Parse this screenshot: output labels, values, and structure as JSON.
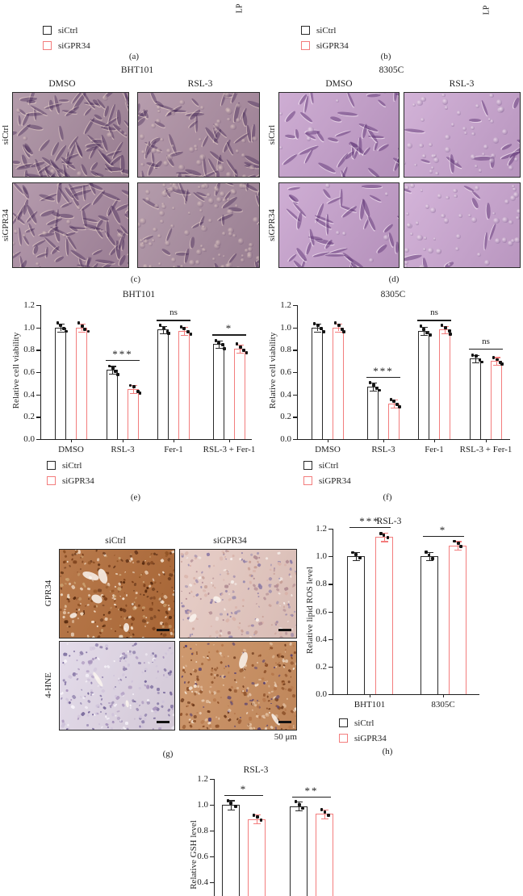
{
  "colors": {
    "text": "#1f1f1f",
    "axis": "#1f1f1f",
    "si_ctrl_outline": "#2a2a2a",
    "si_gpr34_outline": "#f37d7d",
    "data_point": "#141414"
  },
  "cropped_axis_labels": {
    "left": "LP",
    "right": "LP"
  },
  "legend_items": [
    {
      "label": "siCtrl",
      "color": "#2a2a2a"
    },
    {
      "label": "siGPR34",
      "color": "#f37d7d"
    }
  ],
  "panel_labels": {
    "a": "(a)",
    "b": "(b)",
    "c": "(c)",
    "d": "(d)",
    "e": "(e)",
    "f": "(f)",
    "g": "(g)",
    "h": "(h)"
  },
  "micrograph_panels": [
    {
      "title": "BHT101",
      "col_headers": [
        "DMSO",
        "RSL-3"
      ],
      "row_headers": [
        "siCtrl",
        "siGPR34"
      ],
      "images": [
        {
          "row": "siCtrl",
          "col": "DMSO",
          "appearance": "dense spindle-shaped adherent cells",
          "base": "#a78b9d"
        },
        {
          "row": "siCtrl",
          "col": "RSL-3",
          "appearance": "dense cells with some rounded dying cells",
          "base": "#ab8da0"
        },
        {
          "row": "siGPR34",
          "col": "DMSO",
          "appearance": "dense spindle-shaped adherent cells",
          "base": "#a98ba0"
        },
        {
          "row": "siGPR34",
          "col": "RSL-3",
          "appearance": "many rounded detached dying cells",
          "base": "#a88c9e"
        }
      ]
    },
    {
      "title": "8305C",
      "col_headers": [
        "DMSO",
        "RSL-3"
      ],
      "row_headers": [
        "siCtrl",
        "siGPR34"
      ],
      "images": [
        {
          "row": "siCtrl",
          "col": "DMSO",
          "appearance": "sparse elongated adherent cells",
          "base": "#c6a0cc"
        },
        {
          "row": "siCtrl",
          "col": "RSL-3",
          "appearance": "sparse rounded dying cells",
          "base": "#cba6d1"
        },
        {
          "row": "siGPR34",
          "col": "DMSO",
          "appearance": "sparse elongated adherent cells",
          "base": "#c7a1cd"
        },
        {
          "row": "siGPR34",
          "col": "RSL-3",
          "appearance": "mostly rounded detached dying cells",
          "base": "#cda8d3"
        }
      ]
    }
  ],
  "ihc_panel": {
    "col_headers": [
      "siCtrl",
      "siGPR34"
    ],
    "row_headers": [
      "GPR34",
      "4-HNE"
    ],
    "scale_bar_label": "50 μm",
    "images": [
      {
        "row": "GPR34",
        "col": "siCtrl",
        "staining": "strong brown staining",
        "base": "#b06b38"
      },
      {
        "row": "GPR34",
        "col": "siGPR34",
        "staining": "weak pale pink-blue staining",
        "base": "#e5c9c2"
      },
      {
        "row": "4-HNE",
        "col": "siCtrl",
        "staining": "weak pale lavender staining",
        "base": "#e0d7e7"
      },
      {
        "row": "4-HNE",
        "col": "siGPR34",
        "staining": "strong orange-brown staining",
        "base": "#c98e5f"
      }
    ]
  },
  "chart_data": [
    {
      "id": "e",
      "type": "bar",
      "title": "BHT101",
      "ylabel": "Relative cell viability",
      "ylim": [
        0,
        1.2
      ],
      "ytick_step": 0.2,
      "categories": [
        "DMSO",
        "RSL-3",
        "Fer-1",
        "RSL-3 + Fer-1"
      ],
      "series": [
        {
          "name": "siCtrl",
          "values": [
            1.0,
            0.62,
            0.98,
            0.85
          ]
        },
        {
          "name": "siGPR34",
          "values": [
            1.0,
            0.45,
            0.97,
            0.81
          ]
        }
      ],
      "significance": [
        null,
        "***",
        "ns",
        "*"
      ],
      "n_points_per_bar": 4,
      "error": 0.035
    },
    {
      "id": "f",
      "type": "bar",
      "title": "8305C",
      "ylabel": "Relative cell viability",
      "ylim": [
        0,
        1.2
      ],
      "ytick_step": 0.2,
      "categories": [
        "DMSO",
        "RSL-3",
        "Fer-1",
        "RSL-3 + Fer-1"
      ],
      "series": [
        {
          "name": "siCtrl",
          "values": [
            1.0,
            0.47,
            0.97,
            0.72
          ]
        },
        {
          "name": "siGPR34",
          "values": [
            1.0,
            0.32,
            0.98,
            0.7
          ]
        }
      ],
      "significance": [
        null,
        "***",
        "ns",
        "ns"
      ],
      "n_points_per_bar": 4,
      "error": 0.035
    },
    {
      "id": "h",
      "type": "bar",
      "title": "RSL-3",
      "ylabel": "Relative lipid ROS level",
      "ylim": [
        0,
        1.2
      ],
      "ytick_step": 0.2,
      "categories": [
        "BHT101",
        "8305C"
      ],
      "series": [
        {
          "name": "siCtrl",
          "values": [
            1.0,
            1.0
          ]
        },
        {
          "name": "siGPR34",
          "values": [
            1.14,
            1.08
          ]
        }
      ],
      "significance": [
        "***",
        "*"
      ],
      "n_points_per_bar": 3,
      "error": 0.03
    },
    {
      "id": "i",
      "type": "bar",
      "title": "RSL-3",
      "ylabel": "Relative GSH level",
      "ylim": [
        0,
        1.2
      ],
      "ytick_step": 0.2,
      "categories": [
        "",
        ""
      ],
      "series": [
        {
          "name": "siCtrl",
          "values": [
            1.0,
            0.99
          ]
        },
        {
          "name": "siGPR34",
          "values": [
            0.89,
            0.93
          ]
        }
      ],
      "significance": [
        "*",
        "**"
      ],
      "n_points_per_bar": 3,
      "error": 0.035,
      "cropped_bottom": true
    }
  ]
}
